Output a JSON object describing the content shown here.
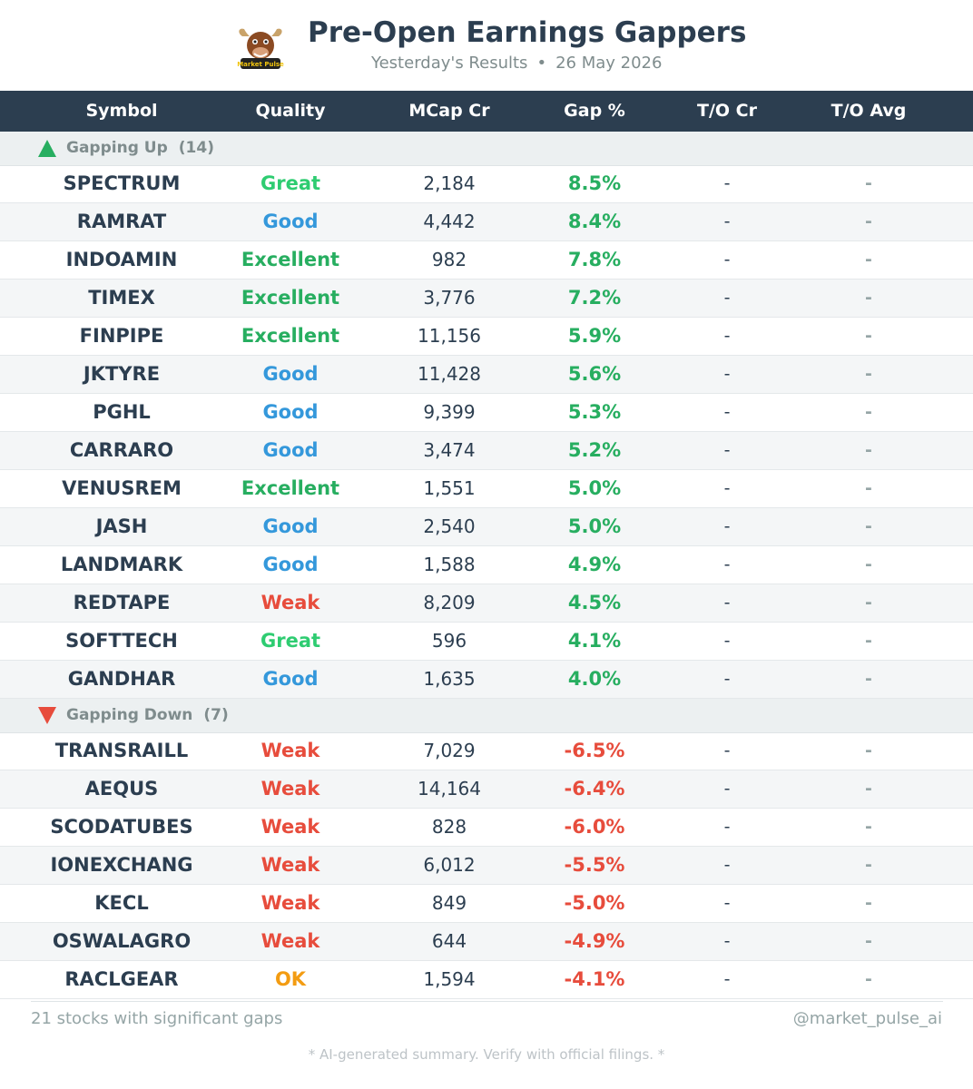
{
  "header": {
    "logo_text": "Market Pulse",
    "title": "Pre-Open Earnings Gappers",
    "subtitle_left": "Yesterday's Results",
    "subtitle_sep": "•",
    "subtitle_date": "26 May 2026"
  },
  "table": {
    "columns": [
      "Symbol",
      "Quality",
      "MCap Cr",
      "Gap %",
      "T/O Cr",
      "T/O Avg"
    ]
  },
  "sections": [
    {
      "label": "Gapping Up",
      "count": "(14)",
      "direction": "up",
      "rows": [
        {
          "symbol": "SPECTRUM",
          "quality": "Great",
          "mcap": "2,184",
          "gap": "8.5%",
          "to": "-",
          "to_avg": "-"
        },
        {
          "symbol": "RAMRAT",
          "quality": "Good",
          "mcap": "4,442",
          "gap": "8.4%",
          "to": "-",
          "to_avg": "-"
        },
        {
          "symbol": "INDOAMIN",
          "quality": "Excellent",
          "mcap": "982",
          "gap": "7.8%",
          "to": "-",
          "to_avg": "-"
        },
        {
          "symbol": "TIMEX",
          "quality": "Excellent",
          "mcap": "3,776",
          "gap": "7.2%",
          "to": "-",
          "to_avg": "-"
        },
        {
          "symbol": "FINPIPE",
          "quality": "Excellent",
          "mcap": "11,156",
          "gap": "5.9%",
          "to": "-",
          "to_avg": "-"
        },
        {
          "symbol": "JKTYRE",
          "quality": "Good",
          "mcap": "11,428",
          "gap": "5.6%",
          "to": "-",
          "to_avg": "-"
        },
        {
          "symbol": "PGHL",
          "quality": "Good",
          "mcap": "9,399",
          "gap": "5.3%",
          "to": "-",
          "to_avg": "-"
        },
        {
          "symbol": "CARRARO",
          "quality": "Good",
          "mcap": "3,474",
          "gap": "5.2%",
          "to": "-",
          "to_avg": "-"
        },
        {
          "symbol": "VENUSREM",
          "quality": "Excellent",
          "mcap": "1,551",
          "gap": "5.0%",
          "to": "-",
          "to_avg": "-"
        },
        {
          "symbol": "JASH",
          "quality": "Good",
          "mcap": "2,540",
          "gap": "5.0%",
          "to": "-",
          "to_avg": "-"
        },
        {
          "symbol": "LANDMARK",
          "quality": "Good",
          "mcap": "1,588",
          "gap": "4.9%",
          "to": "-",
          "to_avg": "-"
        },
        {
          "symbol": "REDTAPE",
          "quality": "Weak",
          "mcap": "8,209",
          "gap": "4.5%",
          "to": "-",
          "to_avg": "-"
        },
        {
          "symbol": "SOFTTECH",
          "quality": "Great",
          "mcap": "596",
          "gap": "4.1%",
          "to": "-",
          "to_avg": "-"
        },
        {
          "symbol": "GANDHAR",
          "quality": "Good",
          "mcap": "1,635",
          "gap": "4.0%",
          "to": "-",
          "to_avg": "-"
        }
      ]
    },
    {
      "label": "Gapping Down",
      "count": "(7)",
      "direction": "down",
      "rows": [
        {
          "symbol": "TRANSRAILL",
          "quality": "Weak",
          "mcap": "7,029",
          "gap": "-6.5%",
          "to": "-",
          "to_avg": "-"
        },
        {
          "symbol": "AEQUS",
          "quality": "Weak",
          "mcap": "14,164",
          "gap": "-6.4%",
          "to": "-",
          "to_avg": "-"
        },
        {
          "symbol": "SCODATUBES",
          "quality": "Weak",
          "mcap": "828",
          "gap": "-6.0%",
          "to": "-",
          "to_avg": "-"
        },
        {
          "symbol": "IONEXCHANG",
          "quality": "Weak",
          "mcap": "6,012",
          "gap": "-5.5%",
          "to": "-",
          "to_avg": "-"
        },
        {
          "symbol": "KECL",
          "quality": "Weak",
          "mcap": "849",
          "gap": "-5.0%",
          "to": "-",
          "to_avg": "-"
        },
        {
          "symbol": "OSWALAGRO",
          "quality": "Weak",
          "mcap": "644",
          "gap": "-4.9%",
          "to": "-",
          "to_avg": "-"
        },
        {
          "symbol": "RACLGEAR",
          "quality": "OK",
          "mcap": "1,594",
          "gap": "-4.1%",
          "to": "-",
          "to_avg": "-"
        }
      ]
    }
  ],
  "colors": {
    "header_bg": "#2c3e50",
    "up": "#27ae60",
    "down": "#e74c3c",
    "Great": "#2ecc71",
    "Excellent": "#27ae60",
    "Good": "#3498db",
    "Weak": "#e74c3c",
    "OK": "#f39c12"
  },
  "footer": {
    "summary": "21 stocks with significant gaps",
    "handle": "@market_pulse_ai",
    "disclaimer": "* AI-generated summary. Verify with official filings. *"
  }
}
